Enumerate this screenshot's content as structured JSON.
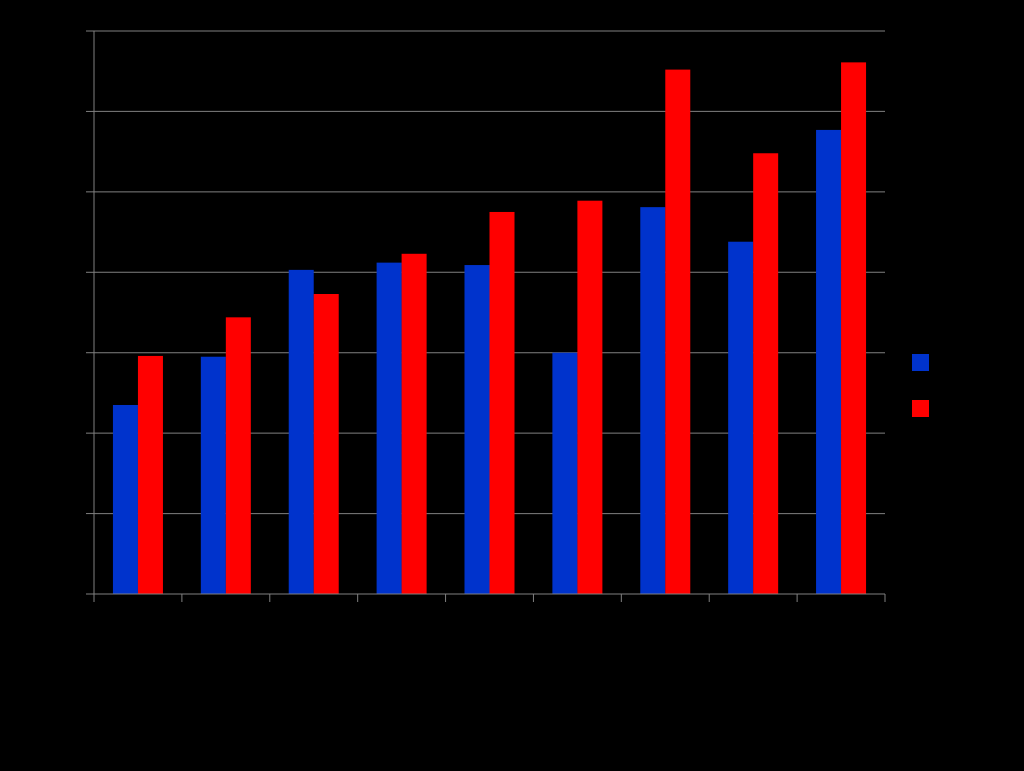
{
  "background_color": "#000000",
  "chart_data": {
    "type": "bar",
    "title": "",
    "xlabel": "",
    "ylabel": "",
    "ylim": [
      0,
      7
    ],
    "grid": true,
    "gridline_color": "#808080",
    "axis_color": "#808080",
    "legend_position": "right",
    "categories": [
      "",
      "",
      "",
      "",
      "",
      "",
      "",
      "",
      ""
    ],
    "series": [
      {
        "color": "#0033cc",
        "values": [
          2.35,
          2.95,
          4.03,
          4.12,
          4.09,
          3.0,
          4.81,
          4.38,
          5.77
        ]
      },
      {
        "color": "#ff0000",
        "values": [
          2.96,
          3.44,
          3.73,
          4.23,
          4.75,
          4.89,
          6.52,
          5.48,
          6.61
        ]
      }
    ]
  }
}
